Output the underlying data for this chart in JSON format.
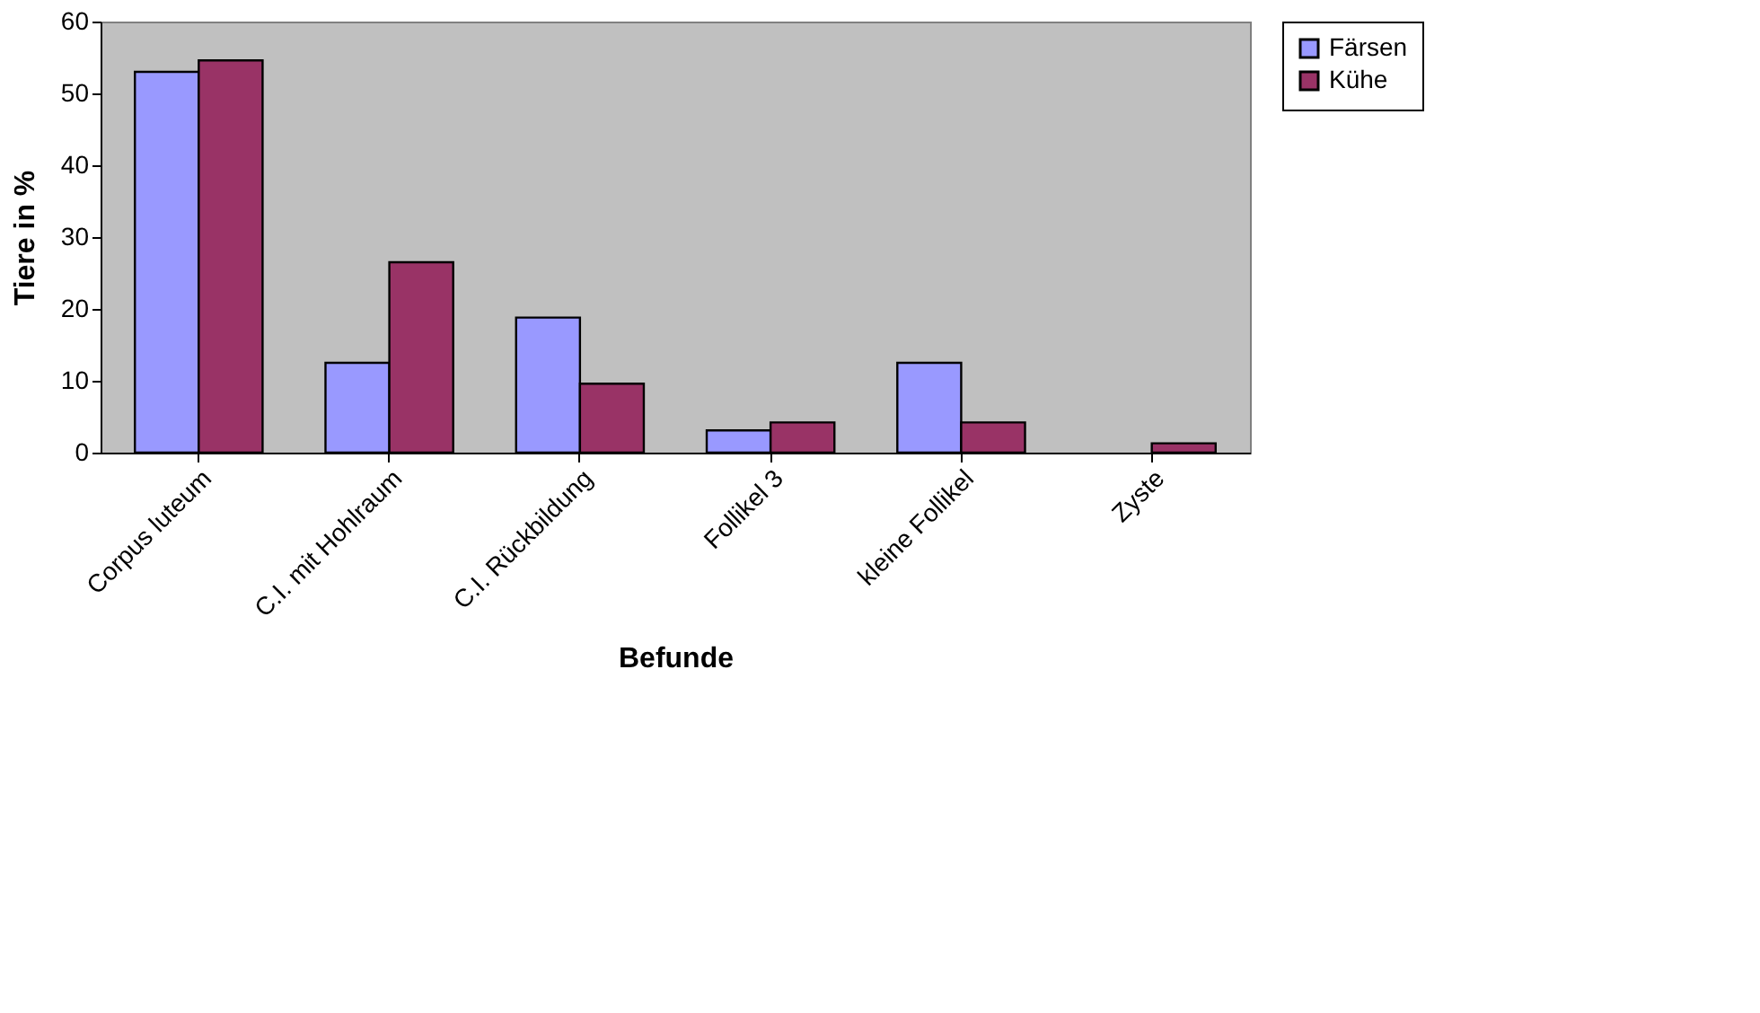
{
  "chart_data": {
    "type": "bar",
    "xlabel": "Befunde",
    "ylabel": "Tiere in %",
    "categories": [
      "Corpus luteum",
      "C.I. mit Hohlraum",
      "C.I. Rückbildung",
      "Follikel 3",
      "kleine Follikel",
      "Zyste"
    ],
    "series": [
      {
        "name": "Färsen",
        "color": "#9999ff",
        "values": [
          53,
          12.5,
          18.8,
          3.1,
          12.5,
          null
        ]
      },
      {
        "name": "Kühe",
        "color": "#993366",
        "values": [
          54.6,
          26.5,
          9.6,
          4.2,
          4.2,
          1.3
        ]
      }
    ],
    "ylim": [
      0,
      60
    ],
    "yticks": [
      0,
      10,
      20,
      30,
      40,
      50,
      60
    ],
    "grid": false,
    "legend": "right"
  }
}
